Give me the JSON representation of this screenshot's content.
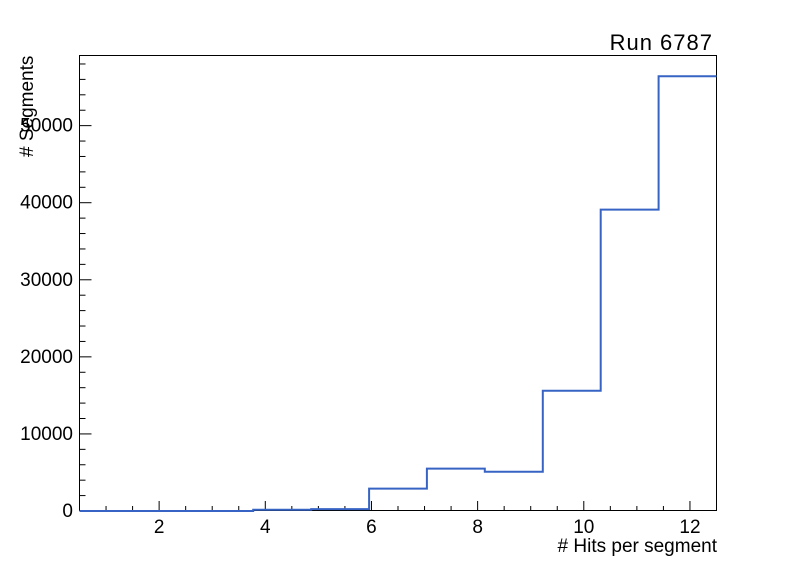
{
  "chart_data": {
    "type": "bar",
    "subtype": "step_histogram",
    "title": "Run 6787",
    "xlabel": "# Hits per segment",
    "ylabel": "# Segments",
    "xlim": [
      0.5,
      12.5
    ],
    "ylim": [
      0,
      59100
    ],
    "grid": false,
    "legend": false,
    "x_ticks": {
      "major_values": [
        2,
        4,
        6,
        8,
        10,
        12
      ],
      "major_labels": [
        "2",
        "4",
        "6",
        "8",
        "10",
        "12"
      ],
      "minor_step": 0.5,
      "minor_start": 1.0,
      "minor_end": 12.0
    },
    "y_ticks": {
      "major_values": [
        0,
        10000,
        20000,
        30000,
        40000,
        50000
      ],
      "major_labels": [
        "0",
        "10000",
        "20000",
        "30000",
        "40000",
        "50000"
      ],
      "minor_step": 2000,
      "minor_max": 58000
    },
    "bins": {
      "edges": [
        0.5,
        1.591,
        2.682,
        3.773,
        4.864,
        5.955,
        7.045,
        8.136,
        9.227,
        10.318,
        11.409,
        12.5
      ],
      "counts": [
        0,
        0,
        0,
        150,
        250,
        2900,
        5500,
        5100,
        15600,
        39100,
        56400
      ]
    },
    "colors": {
      "line": "#3764c4",
      "frame": "#000000",
      "text": "#000000",
      "background": "#ffffff"
    }
  }
}
